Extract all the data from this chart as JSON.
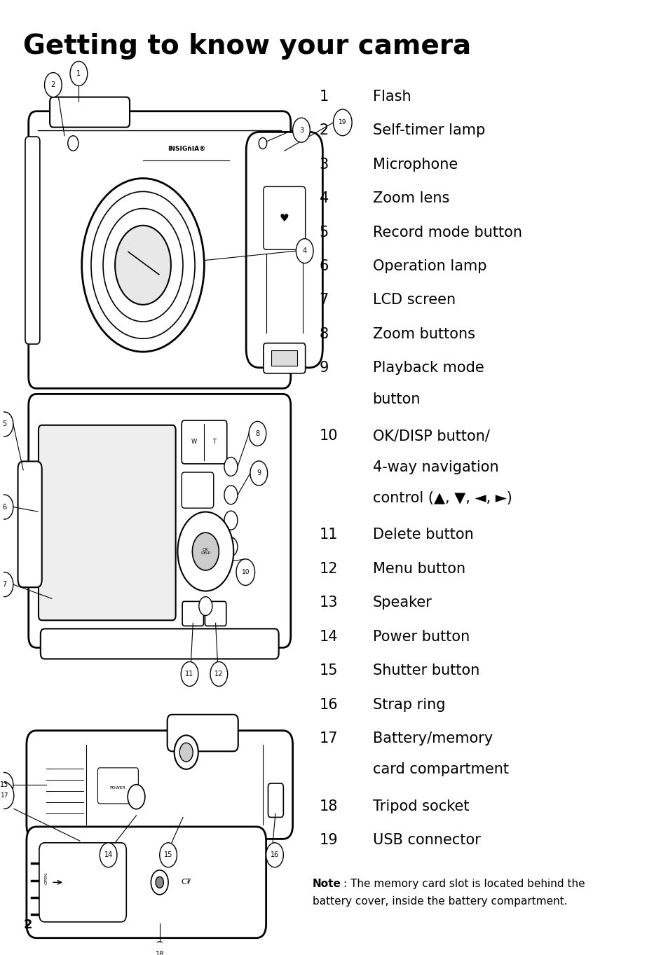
{
  "title": "Getting to know your camera",
  "title_fontsize": 28,
  "title_fontweight": "bold",
  "bg_color": "#ffffff",
  "text_color": "#000000",
  "items": [
    {
      "num": "1",
      "label": "Flash"
    },
    {
      "num": "2",
      "label": "Self-timer lamp"
    },
    {
      "num": "3",
      "label": "Microphone"
    },
    {
      "num": "4",
      "label": "Zoom lens"
    },
    {
      "num": "5",
      "label": "Record mode button"
    },
    {
      "num": "6",
      "label": "Operation lamp"
    },
    {
      "num": "7",
      "label": "LCD screen"
    },
    {
      "num": "8",
      "label": "Zoom buttons"
    },
    {
      "num": "9",
      "label": "Playback mode\nbutton"
    },
    {
      "num": "10",
      "label": "OK/DISP button/\n4-way navigation\ncontrol (▲, ▼, ◄, ►)"
    },
    {
      "num": "11",
      "label": "Delete button"
    },
    {
      "num": "12",
      "label": "Menu button"
    },
    {
      "num": "13",
      "label": "Speaker"
    },
    {
      "num": "14",
      "label": "Power button"
    },
    {
      "num": "15",
      "label": "Shutter button"
    },
    {
      "num": "16",
      "label": "Strap ring"
    },
    {
      "num": "17",
      "label": "Battery/memory\ncard compartment"
    },
    {
      "num": "18",
      "label": "Tripod socket"
    },
    {
      "num": "19",
      "label": "USB connector"
    }
  ],
  "note_bold": "Note",
  "note_text": ": The memory card slot is located behind the\nbattery cover, inside the battery compartment.",
  "page_number": "2",
  "item_fontsize": 15,
  "note_fontsize": 11
}
